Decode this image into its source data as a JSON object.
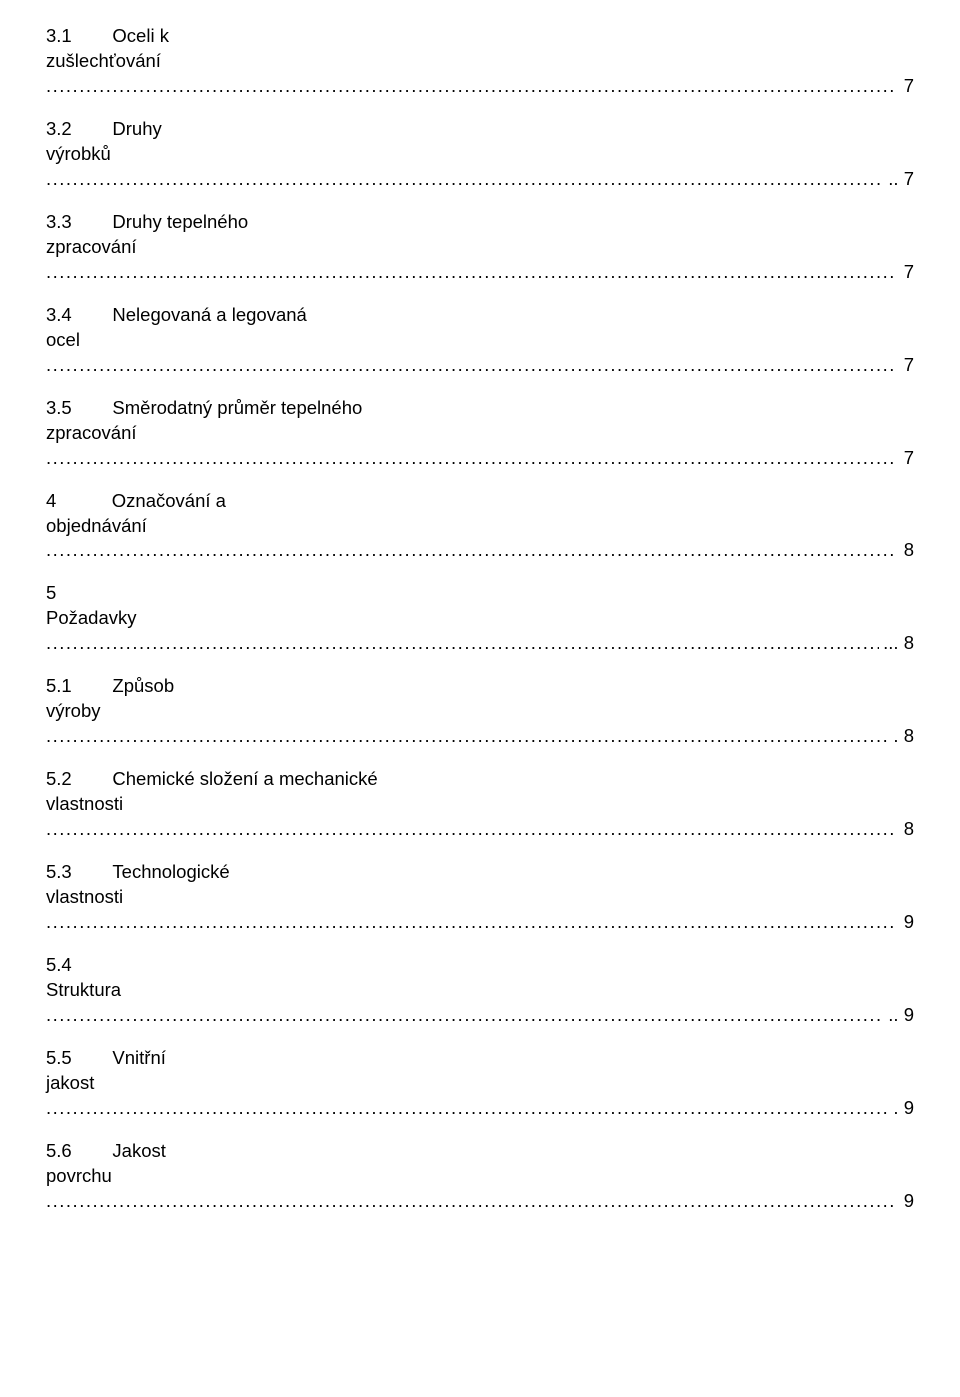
{
  "dots": "..............................................................................................................................................................................................................................................................................................................................................",
  "entries": [
    {
      "num": "3.1",
      "gap_em": 2.2,
      "title_l1": "Oceli k",
      "title_l2": "zušlechťování",
      "prefix": "",
      "page": " 7"
    },
    {
      "num": "3.2",
      "gap_em": 2.2,
      "title_l1": "Druhy",
      "title_l2": "výrobků",
      "prefix": "",
      "page": ".. 7"
    },
    {
      "num": "3.3",
      "gap_em": 2.2,
      "title_l1": "Druhy tepelného",
      "title_l2": "zpracování",
      "prefix": "",
      "page": " 7"
    },
    {
      "num": "3.4",
      "gap_em": 2.2,
      "title_l1": "Nelegovaná a legovaná",
      "title_l2": "ocel",
      "prefix": "",
      "page": " 7"
    },
    {
      "num": "3.5",
      "gap_em": 2.2,
      "title_l1": "Směrodatný průměr tepelného",
      "title_l2": "zpracování",
      "prefix": "",
      "page": " 7"
    },
    {
      "num": "4",
      "gap_em": 3.0,
      "title_l1": "Označování a",
      "title_l2": "objednávání",
      "prefix": "",
      "page": " 8"
    },
    {
      "num": "5",
      "gap_em": 0,
      "title_l1": "",
      "title_l2": "Požadavky",
      "prefix": "",
      "page": "... 8"
    },
    {
      "num": "5.1",
      "gap_em": 2.2,
      "title_l1": "Způsob",
      "title_l2": "výroby",
      "prefix": "",
      "page": ". 8"
    },
    {
      "num": "5.2",
      "gap_em": 2.2,
      "title_l1": "Chemické složení a mechanické",
      "title_l2": "vlastnosti",
      "prefix": "",
      "page": " 8"
    },
    {
      "num": "5.3",
      "gap_em": 2.2,
      "title_l1": "Technologické",
      "title_l2": "vlastnosti",
      "prefix": "",
      "page": " 9"
    },
    {
      "num": "5.4",
      "gap_em": 0,
      "title_l1": "",
      "title_l2": "Struktura",
      "prefix": "",
      "page": ".. 9"
    },
    {
      "num": "5.5",
      "gap_em": 2.2,
      "title_l1": "Vnitřní",
      "title_l2": "jakost",
      "prefix": "",
      "page": ". 9"
    },
    {
      "num": "5.6",
      "gap_em": 2.2,
      "title_l1": "Jakost",
      "title_l2": "povrchu",
      "prefix": "",
      "page": " 9"
    }
  ]
}
